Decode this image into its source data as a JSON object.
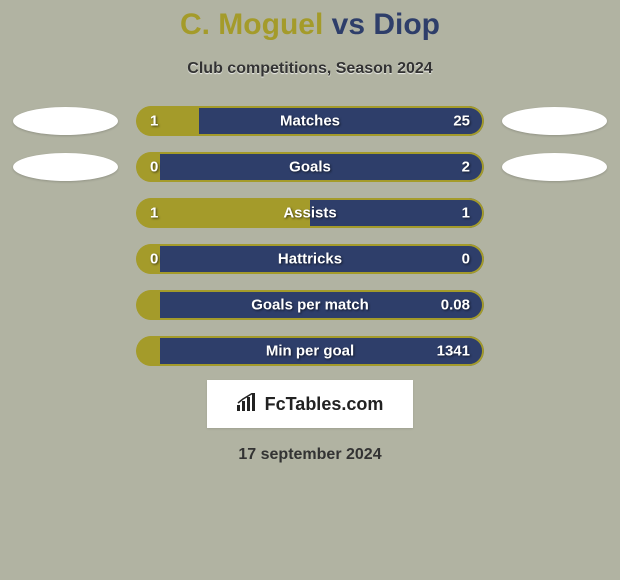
{
  "colors": {
    "background": "#b1b3a2",
    "player1": "#a49b2a",
    "player2": "#2e3e6a",
    "bar_track": "#b1b3a2"
  },
  "title": {
    "player1": "C. Moguel",
    "vs": "vs",
    "player2": "Diop"
  },
  "subtitle": "Club competitions, Season 2024",
  "stats": [
    {
      "label": "Matches",
      "left_val": "1",
      "right_val": "25",
      "left_pct": 18,
      "show_avatars": true
    },
    {
      "label": "Goals",
      "left_val": "0",
      "right_val": "2",
      "left_pct": 7,
      "show_avatars": true
    },
    {
      "label": "Assists",
      "left_val": "1",
      "right_val": "1",
      "left_pct": 50,
      "show_avatars": false
    },
    {
      "label": "Hattricks",
      "left_val": "0",
      "right_val": "0",
      "left_pct": 7,
      "show_avatars": false
    },
    {
      "label": "Goals per match",
      "left_val": "",
      "right_val": "0.08",
      "left_pct": 7,
      "show_avatars": false
    },
    {
      "label": "Min per goal",
      "left_val": "",
      "right_val": "1341",
      "left_pct": 7,
      "show_avatars": false
    }
  ],
  "logo": {
    "icon": "📊",
    "text": "FcTables.com"
  },
  "date": "17 september 2024"
}
